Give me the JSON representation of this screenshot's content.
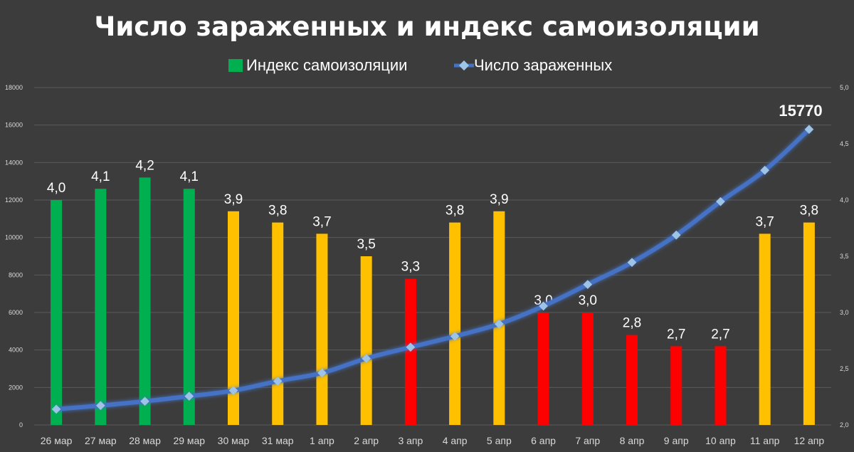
{
  "chart_data": {
    "type": "bar+line",
    "title": "Число зараженных и индекс самоизоляции",
    "categories": [
      "26 мар",
      "27 мар",
      "28 мар",
      "29 мар",
      "30 мар",
      "31 мар",
      "1 апр",
      "2 апр",
      "3 апр",
      "4 апр",
      "5 апр",
      "6 апр",
      "7 апр",
      "8 апр",
      "9 апр",
      "10 апр",
      "11 апр",
      "12 апр"
    ],
    "series": [
      {
        "name": "Индекс самоизоляции",
        "type": "bar",
        "axis": "right",
        "values": [
          4.0,
          4.1,
          4.2,
          4.1,
          3.9,
          3.8,
          3.7,
          3.5,
          3.3,
          3.8,
          3.9,
          3.0,
          3.0,
          2.8,
          2.7,
          2.7,
          3.7,
          3.8
        ],
        "data_labels": [
          "4,0",
          "4,1",
          "4,2",
          "4,1",
          "3,9",
          "3,8",
          "3,7",
          "3,5",
          "3,3",
          "3,8",
          "3,9",
          "3,0",
          "3,0",
          "2,8",
          "2,7",
          "2,7",
          "3,7",
          "3,8"
        ],
        "bar_colors": [
          "#00b050",
          "#00b050",
          "#00b050",
          "#00b050",
          "#ffc000",
          "#ffc000",
          "#ffc000",
          "#ffc000",
          "#ff0000",
          "#ffc000",
          "#ffc000",
          "#ff0000",
          "#ff0000",
          "#ff0000",
          "#ff0000",
          "#ff0000",
          "#ffc000",
          "#ffc000"
        ],
        "legend_color": "#00b050"
      },
      {
        "name": "Число зараженных",
        "type": "line",
        "axis": "left",
        "values": [
          840,
          1036,
          1264,
          1534,
          1836,
          2337,
          2777,
          3548,
          4149,
          4731,
          5389,
          6343,
          7497,
          8672,
          10131,
          11917,
          13584,
          15770
        ],
        "line_color": "#4472c4",
        "marker_color": "#9dc3e6"
      }
    ],
    "annotation": "15770",
    "left_axis": {
      "ylim": [
        0,
        18000
      ],
      "ticks": [
        "0",
        "2000",
        "4000",
        "6000",
        "8000",
        "10000",
        "12000",
        "14000",
        "16000",
        "18000"
      ]
    },
    "right_axis": {
      "ylim": [
        2.0,
        5.0
      ],
      "ticks": [
        "2,0",
        "2,5",
        "3,0",
        "3,5",
        "4,0",
        "4,5",
        "5,0"
      ]
    },
    "grid": true,
    "legend_position": "top-center"
  }
}
